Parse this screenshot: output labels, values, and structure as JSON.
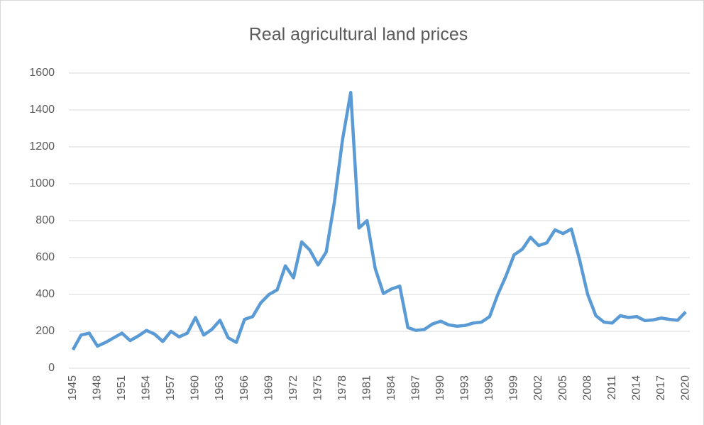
{
  "chart_data": {
    "type": "line",
    "title": "Real agricultural land prices",
    "x": [
      1945,
      1946,
      1947,
      1948,
      1949,
      1950,
      1951,
      1952,
      1953,
      1954,
      1955,
      1956,
      1957,
      1958,
      1959,
      1960,
      1961,
      1962,
      1963,
      1964,
      1965,
      1966,
      1967,
      1968,
      1969,
      1970,
      1971,
      1972,
      1973,
      1974,
      1975,
      1976,
      1977,
      1978,
      1979,
      1980,
      1981,
      1982,
      1983,
      1984,
      1985,
      1986,
      1987,
      1988,
      1989,
      1990,
      1991,
      1992,
      1993,
      1994,
      1995,
      1996,
      1997,
      1998,
      1999,
      2000,
      2001,
      2002,
      2003,
      2004,
      2005,
      2006,
      2007,
      2008,
      2009,
      2010,
      2011,
      2012,
      2013,
      2014,
      2015,
      2016,
      2017,
      2018,
      2019,
      2020
    ],
    "series": [
      {
        "name": "Real agricultural land prices",
        "color": "#5b9bd5",
        "values": [
          100,
          180,
          190,
          120,
          140,
          165,
          190,
          150,
          175,
          205,
          185,
          145,
          200,
          170,
          190,
          275,
          180,
          210,
          260,
          165,
          140,
          265,
          280,
          355,
          400,
          425,
          555,
          490,
          685,
          640,
          560,
          630,
          900,
          1240,
          1495,
          760,
          800,
          540,
          405,
          430,
          445,
          220,
          205,
          210,
          240,
          255,
          235,
          228,
          232,
          245,
          250,
          280,
          400,
          500,
          615,
          645,
          710,
          665,
          680,
          750,
          730,
          755,
          590,
          400,
          285,
          250,
          245,
          285,
          275,
          280,
          258,
          262,
          272,
          265,
          260,
          305
        ]
      }
    ],
    "xlim": [
      1944.5,
      2020.5
    ],
    "xticks": [
      1945,
      1948,
      1951,
      1954,
      1957,
      1960,
      1963,
      1966,
      1969,
      1972,
      1975,
      1978,
      1981,
      1984,
      1987,
      1990,
      1993,
      1996,
      1999,
      2002,
      2005,
      2008,
      2011,
      2014,
      2017,
      2020
    ],
    "ylim": [
      0,
      1600
    ],
    "yticks": [
      0,
      200,
      400,
      600,
      800,
      1000,
      1200,
      1400,
      1600
    ],
    "grid": true
  }
}
